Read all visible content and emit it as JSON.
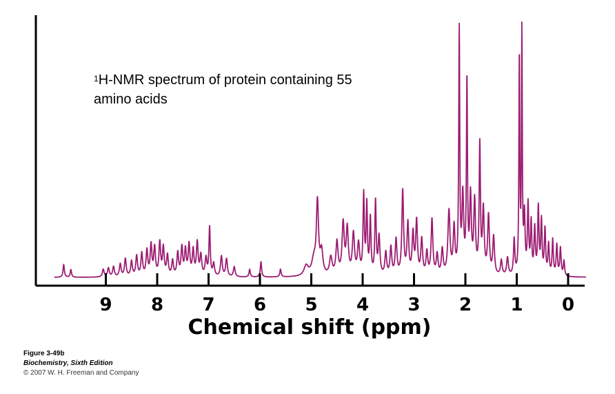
{
  "chart_data": {
    "type": "line",
    "annotation_superscript": "1",
    "annotation_line1": "H-NMR spectrum of protein containing 55",
    "annotation_line2": "amino acids",
    "xlabel": "Chemical shift (ppm)",
    "ylabel": "",
    "x_reversed": true,
    "xlim": [
      10.0,
      -0.35
    ],
    "ylim": [
      0,
      1.0
    ],
    "ticks": [
      "9",
      "8",
      "7",
      "6",
      "5",
      "4",
      "3",
      "2",
      "1",
      "0"
    ],
    "grid": false,
    "line_color": "#9c1c72",
    "peaks": [
      [
        9.82,
        0.05,
        0.015
      ],
      [
        9.68,
        0.03,
        0.015
      ],
      [
        9.05,
        0.03,
        0.02
      ],
      [
        8.95,
        0.035,
        0.02
      ],
      [
        8.85,
        0.04,
        0.02
      ],
      [
        8.72,
        0.05,
        0.02
      ],
      [
        8.62,
        0.07,
        0.02
      ],
      [
        8.5,
        0.06,
        0.02
      ],
      [
        8.4,
        0.08,
        0.02
      ],
      [
        8.3,
        0.09,
        0.02
      ],
      [
        8.2,
        0.1,
        0.02
      ],
      [
        8.12,
        0.12,
        0.02
      ],
      [
        8.05,
        0.11,
        0.02
      ],
      [
        7.95,
        0.13,
        0.02
      ],
      [
        7.88,
        0.11,
        0.02
      ],
      [
        7.8,
        0.08,
        0.02
      ],
      [
        7.7,
        0.06,
        0.02
      ],
      [
        7.6,
        0.09,
        0.02
      ],
      [
        7.52,
        0.11,
        0.02
      ],
      [
        7.45,
        0.1,
        0.02
      ],
      [
        7.38,
        0.12,
        0.02
      ],
      [
        7.3,
        0.1,
        0.02
      ],
      [
        7.22,
        0.13,
        0.02
      ],
      [
        7.15,
        0.08,
        0.02
      ],
      [
        7.05,
        0.07,
        0.02
      ],
      [
        6.98,
        0.19,
        0.015
      ],
      [
        6.9,
        0.05,
        0.02
      ],
      [
        6.75,
        0.08,
        0.02
      ],
      [
        6.65,
        0.07,
        0.02
      ],
      [
        6.5,
        0.04,
        0.02
      ],
      [
        6.2,
        0.03,
        0.015
      ],
      [
        5.98,
        0.06,
        0.015
      ],
      [
        5.6,
        0.03,
        0.015
      ],
      [
        5.1,
        0.04,
        0.05
      ],
      [
        4.95,
        0.06,
        0.05
      ],
      [
        4.88,
        0.28,
        0.025
      ],
      [
        4.8,
        0.09,
        0.03
      ],
      [
        4.62,
        0.07,
        0.03
      ],
      [
        4.5,
        0.13,
        0.025
      ],
      [
        4.38,
        0.2,
        0.025
      ],
      [
        4.3,
        0.18,
        0.025
      ],
      [
        4.18,
        0.16,
        0.025
      ],
      [
        4.08,
        0.12,
        0.025
      ],
      [
        3.98,
        0.31,
        0.015
      ],
      [
        3.92,
        0.27,
        0.015
      ],
      [
        3.85,
        0.22,
        0.015
      ],
      [
        3.75,
        0.29,
        0.015
      ],
      [
        3.68,
        0.15,
        0.02
      ],
      [
        3.55,
        0.09,
        0.02
      ],
      [
        3.45,
        0.11,
        0.02
      ],
      [
        3.35,
        0.14,
        0.02
      ],
      [
        3.22,
        0.33,
        0.02
      ],
      [
        3.12,
        0.2,
        0.02
      ],
      [
        3.02,
        0.16,
        0.02
      ],
      [
        2.95,
        0.21,
        0.02
      ],
      [
        2.85,
        0.14,
        0.02
      ],
      [
        2.75,
        0.09,
        0.02
      ],
      [
        2.65,
        0.22,
        0.02
      ],
      [
        2.55,
        0.08,
        0.02
      ],
      [
        2.45,
        0.1,
        0.02
      ],
      [
        2.32,
        0.25,
        0.025
      ],
      [
        2.22,
        0.18,
        0.02
      ],
      [
        2.12,
        0.95,
        0.012
      ],
      [
        2.05,
        0.3,
        0.02
      ],
      [
        1.97,
        0.75,
        0.012
      ],
      [
        1.9,
        0.3,
        0.02
      ],
      [
        1.82,
        0.28,
        0.02
      ],
      [
        1.72,
        0.5,
        0.015
      ],
      [
        1.65,
        0.25,
        0.02
      ],
      [
        1.55,
        0.23,
        0.02
      ],
      [
        1.45,
        0.15,
        0.02
      ],
      [
        1.3,
        0.06,
        0.02
      ],
      [
        1.18,
        0.07,
        0.02
      ],
      [
        1.05,
        0.14,
        0.015
      ],
      [
        0.95,
        0.85,
        0.01
      ],
      [
        0.9,
        0.96,
        0.01
      ],
      [
        0.85,
        0.22,
        0.015
      ],
      [
        0.78,
        0.27,
        0.015
      ],
      [
        0.72,
        0.2,
        0.015
      ],
      [
        0.65,
        0.18,
        0.015
      ],
      [
        0.58,
        0.26,
        0.015
      ],
      [
        0.52,
        0.21,
        0.015
      ],
      [
        0.45,
        0.18,
        0.015
      ],
      [
        0.38,
        0.12,
        0.015
      ],
      [
        0.3,
        0.14,
        0.015
      ],
      [
        0.22,
        0.12,
        0.015
      ],
      [
        0.15,
        0.11,
        0.015
      ],
      [
        0.08,
        0.06,
        0.015
      ]
    ]
  },
  "caption": {
    "figure": "Figure 3-49b",
    "book": "Biochemistry, Sixth Edition",
    "copyright": "© 2007 W. H. Freeman and Company"
  }
}
